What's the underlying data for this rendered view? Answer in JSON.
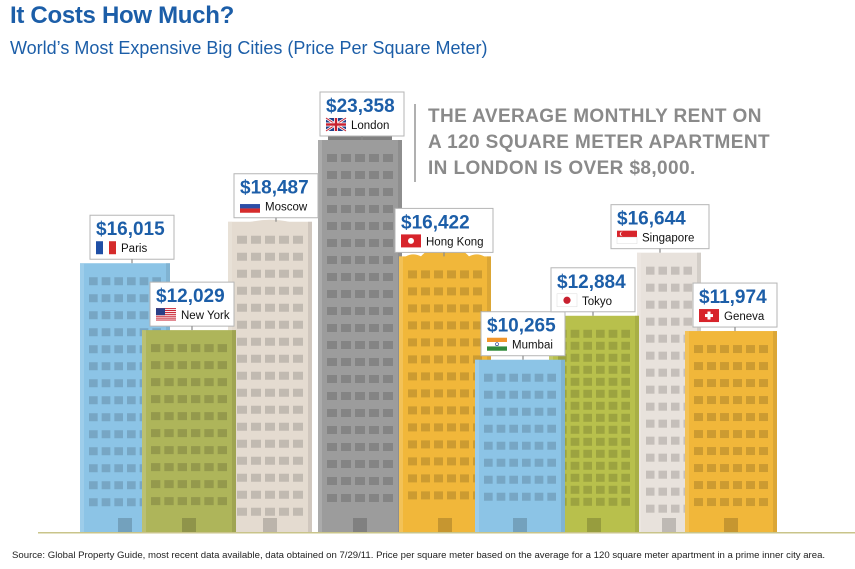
{
  "header": {
    "title": "It Costs How Much?",
    "subtitle": "World’s Most Expensive Big Cities (Price Per Square Meter)"
  },
  "callout": {
    "line1": "THE AVERAGE MONTHLY RENT ON",
    "line2": "A 120 SQUARE METER APARTMENT",
    "line3": "IN LONDON IS OVER $8,000."
  },
  "source": "Source: Global Property Guide, most recent data available, data obtained on 7/29/11. Price per square meter based on the average for a 120 square meter apartment in a prime inner city area.",
  "colors": {
    "title": "#1c5ea8",
    "value_label": "#1c5ea8",
    "baseline": "#c9c48a",
    "callout_text": "#8a8a8a"
  },
  "chart_data": {
    "type": "bar",
    "title": "World’s Most Expensive Big Cities (Price Per Square Meter)",
    "unit": "USD per square meter",
    "style": "buildings",
    "categories": [
      "Paris",
      "New York",
      "Moscow",
      "London",
      "Hong Kong",
      "Mumbai",
      "Tokyo",
      "Singapore",
      "Geneva"
    ],
    "values": [
      16015,
      12029,
      18487,
      23358,
      16422,
      10265,
      12884,
      16644,
      11974
    ],
    "value_labels": [
      "$16,015",
      "$12,029",
      "$18,487",
      "$23,358",
      "$16,422",
      "$10,265",
      "$12,884",
      "$16,644",
      "$11,974"
    ],
    "flags": [
      "france-flag",
      "usa-flag",
      "russia-flag",
      "uk-flag",
      "hong-kong-flag",
      "india-flag",
      "japan-flag",
      "singapore-flag",
      "switzerland-flag"
    ],
    "building_colors": [
      "#8cc4e6",
      "#aeb55a",
      "#e4dbd0",
      "#9c9c9c",
      "#f1b73a",
      "#8cc4e6",
      "#b8c04c",
      "#e8e2dc",
      "#f1b73a"
    ]
  }
}
